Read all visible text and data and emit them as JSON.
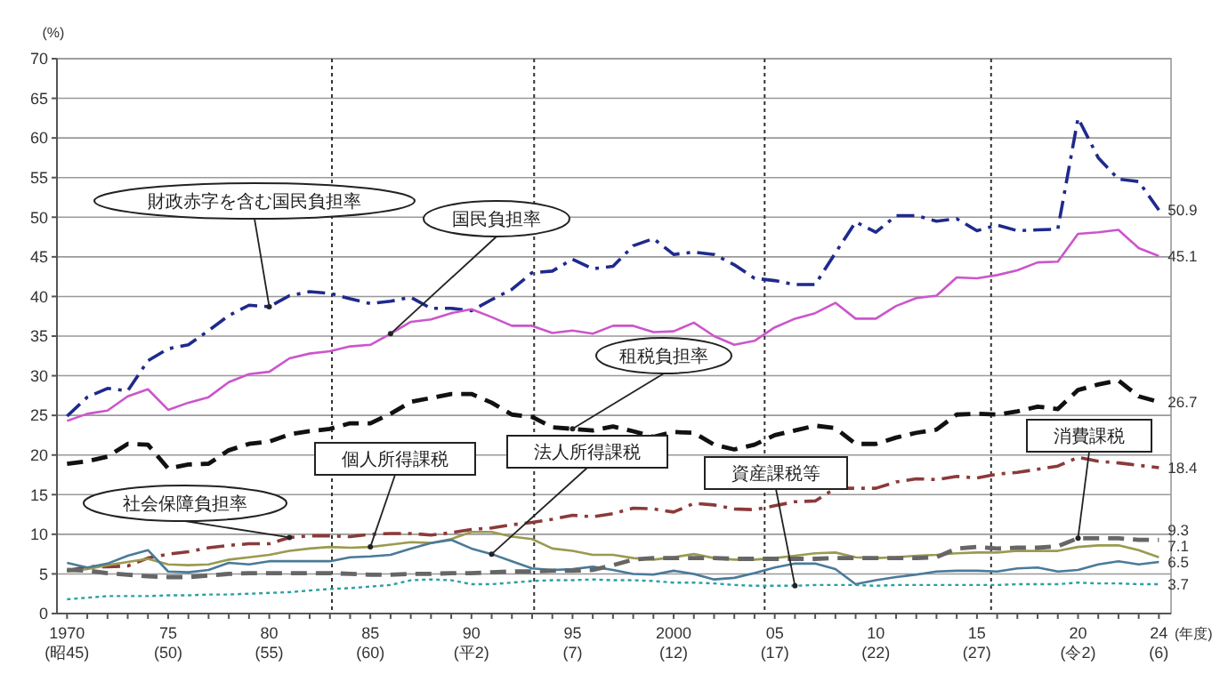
{
  "chart_data": {
    "type": "line",
    "ylabel": "(%)",
    "xlabel": "(年度)",
    "x": [
      1970,
      1971,
      1972,
      1973,
      1974,
      1975,
      1976,
      1977,
      1978,
      1979,
      1980,
      1981,
      1982,
      1983,
      1984,
      1985,
      1986,
      1987,
      1988,
      1989,
      1990,
      1991,
      1992,
      1993,
      1994,
      1995,
      1996,
      1997,
      1998,
      1999,
      2000,
      2001,
      2002,
      2003,
      2004,
      2005,
      2006,
      2007,
      2008,
      2009,
      2010,
      2011,
      2012,
      2013,
      2014,
      2015,
      2016,
      2017,
      2018,
      2019,
      2020,
      2021,
      2022,
      2023,
      2024
    ],
    "xlim": [
      1969.5,
      2024.6
    ],
    "xticks": [
      1970,
      {
        "value": 1971,
        "label": null
      },
      {
        "value": 1972,
        "label": null
      },
      {
        "value": 1973,
        "label": null
      },
      {
        "value": 1974,
        "label": null
      },
      {
        "value": 1975,
        "label": "75"
      },
      {
        "value": 1976,
        "label": null
      },
      {
        "value": 1977,
        "label": null
      },
      {
        "value": 1978,
        "label": null
      },
      {
        "value": 1979,
        "label": null
      },
      {
        "value": 1980,
        "label": "80"
      },
      {
        "value": 1981,
        "label": null
      },
      {
        "value": 1982,
        "label": null
      },
      {
        "value": 1983,
        "label": null
      },
      {
        "value": 1984,
        "label": null
      },
      {
        "value": 1985,
        "label": "85"
      },
      {
        "value": 1986,
        "label": null
      },
      {
        "value": 1987,
        "label": null
      },
      {
        "value": 1988,
        "label": null
      },
      {
        "value": 1989,
        "label": null
      },
      {
        "value": 1990,
        "label": "90"
      },
      {
        "value": 1991,
        "label": null
      },
      {
        "value": 1992,
        "label": null
      },
      {
        "value": 1993,
        "label": null
      },
      {
        "value": 1994,
        "label": null
      },
      {
        "value": 1995,
        "label": "95"
      },
      {
        "value": 1996,
        "label": null
      },
      {
        "value": 1997,
        "label": null
      },
      {
        "value": 1998,
        "label": null
      },
      {
        "value": 1999,
        "label": null
      },
      2000,
      {
        "value": 2001,
        "label": null
      },
      {
        "value": 2002,
        "label": null
      },
      {
        "value": 2003,
        "label": null
      },
      {
        "value": 2004,
        "label": null
      },
      {
        "value": 2005,
        "label": "05"
      },
      {
        "value": 2006,
        "label": null
      },
      {
        "value": 2007,
        "label": null
      },
      {
        "value": 2008,
        "label": null
      },
      {
        "value": 2009,
        "label": null
      },
      {
        "value": 2010,
        "label": "10"
      },
      {
        "value": 2011,
        "label": null
      },
      {
        "value": 2012,
        "label": null
      },
      {
        "value": 2013,
        "label": null
      },
      {
        "value": 2014,
        "label": null
      },
      {
        "value": 2015,
        "label": "15"
      },
      {
        "value": 2016,
        "label": null
      },
      {
        "value": 2017,
        "label": null
      },
      {
        "value": 2018,
        "label": null
      },
      {
        "value": 2019,
        "label": null
      },
      {
        "value": 2020,
        "label": "20"
      },
      {
        "value": 2021,
        "label": null
      },
      {
        "value": 2022,
        "label": null
      },
      {
        "value": 2023,
        "label": null
      },
      {
        "value": 2024,
        "label": "24"
      }
    ],
    "ylim": [
      0,
      70
    ],
    "yticks": [
      0,
      5,
      10,
      15,
      20,
      25,
      30,
      35,
      40,
      45,
      50,
      55,
      60,
      65,
      70
    ],
    "grid": "y",
    "marker": "none",
    "annotations": [
      "(昭45)",
      "(50)",
      "(55)",
      "(60)",
      "(平2)",
      "(7)",
      "(12)",
      "(17)",
      "(22)",
      "(27)",
      "(令2)",
      "(6)"
    ],
    "ref_lines": [
      {
        "axis": "x",
        "value": 1983.1,
        "label": null,
        "color": "#333333",
        "line_style": "dotted"
      },
      {
        "axis": "x",
        "value": 1993.1,
        "label": null,
        "color": "#333333",
        "line_style": "dotted"
      },
      {
        "axis": "x",
        "value": 2004.5,
        "label": null,
        "color": "#333333",
        "line_style": "dotted"
      },
      {
        "axis": "x",
        "value": 2015.7,
        "label": null,
        "color": "#333333",
        "line_style": "dotted"
      }
    ],
    "series": [
      {
        "name": "財政赤字を含む国民負担率",
        "color": "#1f2a8c",
        "line_style": "dashdot",
        "values": [
          24.9,
          27.3,
          28.4,
          28.1,
          31.9,
          33.4,
          33.9,
          35.7,
          37.6,
          38.9,
          38.7,
          40.1,
          40.6,
          40.4,
          39.7,
          39.1,
          39.4,
          39.9,
          38.5,
          38.5,
          38.2,
          39.6,
          40.9,
          43.0,
          43.2,
          44.7,
          43.5,
          43.8,
          46.4,
          47.3,
          45.3,
          45.6,
          45.3,
          44.0,
          42.3,
          42.0,
          41.5,
          41.5,
          45.5,
          49.4,
          48.1,
          50.2,
          50.2,
          49.5,
          49.8,
          48.3,
          49.0,
          48.3,
          48.4,
          48.5,
          62.5,
          57.5,
          54.8,
          54.5,
          50.9
        ],
        "value_labels": [
          null,
          null,
          null,
          null,
          null,
          null,
          null,
          null,
          null,
          null,
          null,
          null,
          null,
          null,
          null,
          null,
          null,
          null,
          null,
          null,
          null,
          null,
          null,
          null,
          null,
          null,
          null,
          null,
          null,
          null,
          null,
          null,
          null,
          null,
          null,
          null,
          null,
          null,
          null,
          null,
          null,
          null,
          null,
          null,
          null,
          null,
          null,
          null,
          null,
          null,
          null,
          null,
          null,
          null,
          "50.9"
        ]
      },
      {
        "name": "国民負担率",
        "color": "#cc55cc",
        "line_style": "solid",
        "values": [
          24.3,
          25.2,
          25.6,
          27.4,
          28.3,
          25.7,
          26.6,
          27.3,
          29.2,
          30.2,
          30.5,
          32.2,
          32.8,
          33.1,
          33.7,
          33.9,
          35.3,
          36.8,
          37.1,
          37.9,
          38.4,
          37.4,
          36.3,
          36.3,
          35.4,
          35.7,
          35.3,
          36.3,
          36.3,
          35.5,
          35.6,
          36.7,
          35.0,
          33.9,
          34.4,
          36.1,
          37.2,
          37.9,
          39.2,
          37.2,
          37.2,
          38.8,
          39.8,
          40.1,
          42.4,
          42.3,
          42.7,
          43.3,
          44.3,
          44.4,
          47.9,
          48.1,
          48.4,
          46.1,
          45.1
        ],
        "value_labels": [
          null,
          null,
          null,
          null,
          null,
          null,
          null,
          null,
          null,
          null,
          null,
          null,
          null,
          null,
          null,
          null,
          null,
          null,
          null,
          null,
          null,
          null,
          null,
          null,
          null,
          null,
          null,
          null,
          null,
          null,
          null,
          null,
          null,
          null,
          null,
          null,
          null,
          null,
          null,
          null,
          null,
          null,
          null,
          null,
          null,
          null,
          null,
          null,
          null,
          null,
          null,
          null,
          null,
          null,
          "45.1"
        ]
      },
      {
        "name": "租税負担率",
        "color": "#111111",
        "line_style": "dashed",
        "values": [
          18.9,
          19.2,
          19.8,
          21.4,
          21.3,
          18.3,
          18.8,
          18.9,
          20.6,
          21.4,
          21.7,
          22.6,
          23.0,
          23.3,
          24.0,
          24.0,
          25.2,
          26.7,
          27.2,
          27.7,
          27.7,
          26.6,
          25.1,
          24.8,
          23.5,
          23.3,
          23.1,
          23.6,
          23.0,
          22.3,
          22.9,
          22.8,
          21.3,
          20.7,
          21.3,
          22.5,
          23.1,
          23.7,
          23.4,
          21.4,
          21.4,
          22.2,
          22.8,
          23.2,
          25.1,
          25.2,
          25.1,
          25.5,
          26.1,
          25.8,
          28.2,
          28.9,
          29.4,
          27.4,
          26.7
        ],
        "value_labels": [
          null,
          null,
          null,
          null,
          null,
          null,
          null,
          null,
          null,
          null,
          null,
          null,
          null,
          null,
          null,
          null,
          null,
          null,
          null,
          null,
          null,
          null,
          null,
          null,
          null,
          null,
          null,
          null,
          null,
          null,
          null,
          null,
          null,
          null,
          null,
          null,
          null,
          null,
          null,
          null,
          null,
          null,
          null,
          null,
          null,
          null,
          null,
          null,
          null,
          null,
          null,
          null,
          null,
          null,
          "26.7"
        ]
      },
      {
        "name": "社会保障負担率",
        "color": "#8b3a3a",
        "line_style": "dashdot",
        "values": [
          5.4,
          5.9,
          5.9,
          6.0,
          7.0,
          7.5,
          7.8,
          8.3,
          8.6,
          8.8,
          8.8,
          9.6,
          9.8,
          9.8,
          9.7,
          10.0,
          10.1,
          10.1,
          9.9,
          10.2,
          10.6,
          10.8,
          11.2,
          11.5,
          11.9,
          12.4,
          12.2,
          12.6,
          13.3,
          13.2,
          12.8,
          13.9,
          13.7,
          13.2,
          13.1,
          13.6,
          14.1,
          14.2,
          15.8,
          15.8,
          15.8,
          16.6,
          17.0,
          16.9,
          17.3,
          17.1,
          17.6,
          17.8,
          18.2,
          18.6,
          19.7,
          19.2,
          19.0,
          18.7,
          18.4
        ],
        "value_labels": [
          null,
          null,
          null,
          null,
          null,
          null,
          null,
          null,
          null,
          null,
          null,
          null,
          null,
          null,
          null,
          null,
          null,
          null,
          null,
          null,
          null,
          null,
          null,
          null,
          null,
          null,
          null,
          null,
          null,
          null,
          null,
          null,
          null,
          null,
          null,
          null,
          null,
          null,
          null,
          null,
          null,
          null,
          null,
          null,
          null,
          null,
          null,
          null,
          null,
          null,
          null,
          null,
          null,
          null,
          "18.4"
        ]
      },
      {
        "name": "個人所得課税",
        "color": "#9a9a50",
        "line_style": "solid",
        "values": [
          5.3,
          5.6,
          6.1,
          6.5,
          6.9,
          6.2,
          6.1,
          6.2,
          6.8,
          7.1,
          7.4,
          7.9,
          8.2,
          8.4,
          8.3,
          8.4,
          8.7,
          9.0,
          8.9,
          9.4,
          10.3,
          10.3,
          9.7,
          9.4,
          8.2,
          7.9,
          7.4,
          7.4,
          7.0,
          6.8,
          7.1,
          7.5,
          7.0,
          6.8,
          6.8,
          7.0,
          7.3,
          7.6,
          7.7,
          7.1,
          7.0,
          7.1,
          7.3,
          7.4,
          7.6,
          7.7,
          7.7,
          7.9,
          7.9,
          7.9,
          8.4,
          8.6,
          8.6,
          8.0,
          7.1
        ],
        "value_labels": [
          null,
          null,
          null,
          null,
          null,
          null,
          null,
          null,
          null,
          null,
          null,
          null,
          null,
          null,
          null,
          null,
          null,
          null,
          null,
          null,
          null,
          null,
          null,
          null,
          null,
          null,
          null,
          null,
          null,
          null,
          null,
          null,
          null,
          null,
          null,
          null,
          null,
          null,
          null,
          null,
          null,
          null,
          null,
          null,
          null,
          null,
          null,
          null,
          null,
          null,
          null,
          null,
          null,
          null,
          "7.1"
        ]
      },
      {
        "name": "法人所得課税",
        "color": "#4a7a9a",
        "line_style": "solid",
        "values": [
          6.4,
          5.8,
          6.3,
          7.3,
          8.0,
          5.3,
          5.2,
          5.5,
          6.4,
          6.2,
          6.6,
          6.6,
          6.6,
          6.6,
          7.1,
          7.2,
          7.4,
          8.2,
          8.9,
          9.3,
          8.2,
          7.5,
          6.6,
          5.7,
          5.5,
          5.6,
          5.9,
          5.5,
          5.0,
          4.9,
          5.4,
          5.0,
          4.3,
          4.5,
          5.1,
          5.8,
          6.3,
          6.3,
          5.6,
          3.7,
          4.2,
          4.6,
          4.9,
          5.3,
          5.4,
          5.4,
          5.3,
          5.7,
          5.8,
          5.3,
          5.5,
          6.2,
          6.6,
          6.2,
          6.5
        ],
        "value_labels": [
          null,
          null,
          null,
          null,
          null,
          null,
          null,
          null,
          null,
          null,
          null,
          null,
          null,
          null,
          null,
          null,
          null,
          null,
          null,
          null,
          null,
          null,
          null,
          null,
          null,
          null,
          null,
          null,
          null,
          null,
          null,
          null,
          null,
          null,
          null,
          null,
          null,
          null,
          null,
          null,
          null,
          null,
          null,
          null,
          null,
          null,
          null,
          null,
          null,
          null,
          null,
          null,
          null,
          null,
          "6.5"
        ]
      },
      {
        "name": "消費課税",
        "color": "#666666",
        "line_style": "dashed",
        "values": [
          5.5,
          5.4,
          5.1,
          4.9,
          4.7,
          4.6,
          4.6,
          4.8,
          5.0,
          5.1,
          5.1,
          5.1,
          5.1,
          5.1,
          5.0,
          4.9,
          4.9,
          5.0,
          5.0,
          5.1,
          5.1,
          5.2,
          5.3,
          5.3,
          5.4,
          5.4,
          5.5,
          6.1,
          6.8,
          7.0,
          7.0,
          7.0,
          7.0,
          6.9,
          6.9,
          6.9,
          6.9,
          6.9,
          7.0,
          7.0,
          7.0,
          7.0,
          7.0,
          7.1,
          8.2,
          8.4,
          8.2,
          8.3,
          8.3,
          8.5,
          9.5,
          9.5,
          9.5,
          9.3,
          9.3
        ],
        "value_labels": [
          null,
          null,
          null,
          null,
          null,
          null,
          null,
          null,
          null,
          null,
          null,
          null,
          null,
          null,
          null,
          null,
          null,
          null,
          null,
          null,
          null,
          null,
          null,
          null,
          null,
          null,
          null,
          null,
          null,
          null,
          null,
          null,
          null,
          null,
          null,
          null,
          null,
          null,
          null,
          null,
          null,
          null,
          null,
          null,
          null,
          null,
          null,
          null,
          null,
          null,
          null,
          null,
          null,
          null,
          "9.3"
        ]
      },
      {
        "name": "資産課税等",
        "color": "#2aa0a0",
        "line_style": "dotted",
        "values": [
          1.8,
          2.0,
          2.2,
          2.2,
          2.2,
          2.3,
          2.3,
          2.4,
          2.4,
          2.5,
          2.6,
          2.7,
          2.9,
          3.1,
          3.2,
          3.4,
          3.6,
          4.2,
          4.3,
          4.2,
          3.7,
          3.7,
          3.9,
          4.1,
          4.2,
          4.2,
          4.3,
          4.2,
          4.2,
          4.1,
          3.9,
          3.9,
          3.8,
          3.6,
          3.5,
          3.5,
          3.5,
          3.6,
          3.6,
          3.6,
          3.5,
          3.6,
          3.6,
          3.6,
          3.6,
          3.6,
          3.6,
          3.7,
          3.7,
          3.7,
          3.9,
          3.8,
          3.8,
          3.7,
          3.7
        ],
        "value_labels": [
          null,
          null,
          null,
          null,
          null,
          null,
          null,
          null,
          null,
          null,
          null,
          null,
          null,
          null,
          null,
          null,
          null,
          null,
          null,
          null,
          null,
          null,
          null,
          null,
          null,
          null,
          null,
          null,
          null,
          null,
          null,
          null,
          null,
          null,
          null,
          null,
          null,
          null,
          null,
          null,
          null,
          null,
          null,
          null,
          null,
          null,
          null,
          null,
          null,
          null,
          null,
          null,
          null,
          null,
          "3.7"
        ]
      }
    ]
  }
}
